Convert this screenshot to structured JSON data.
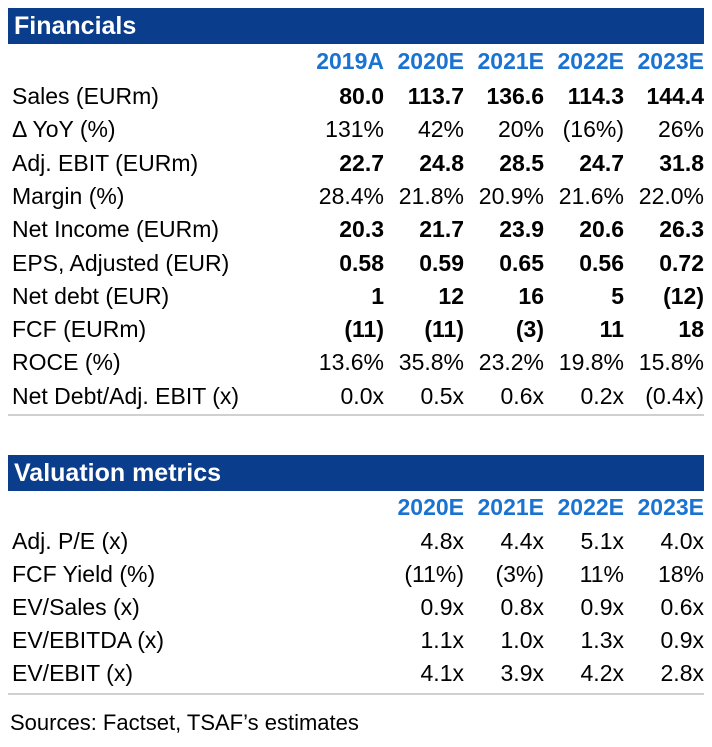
{
  "financials": {
    "title": "Financials",
    "years": [
      "2019A",
      "2020E",
      "2021E",
      "2022E",
      "2023E"
    ],
    "rows": [
      {
        "label": "Sales (EURm)",
        "bold": true,
        "values": [
          "80.0",
          "113.7",
          "136.6",
          "114.3",
          "144.4"
        ]
      },
      {
        "label": "Δ YoY (%)",
        "bold": false,
        "values": [
          "131%",
          "42%",
          "20%",
          "(16%)",
          "26%"
        ]
      },
      {
        "label": "Adj. EBIT (EURm)",
        "bold": true,
        "values": [
          "22.7",
          "24.8",
          "28.5",
          "24.7",
          "31.8"
        ]
      },
      {
        "label": "Margin (%)",
        "bold": false,
        "values": [
          "28.4%",
          "21.8%",
          "20.9%",
          "21.6%",
          "22.0%"
        ]
      },
      {
        "label": "Net Income (EURm)",
        "bold": true,
        "values": [
          "20.3",
          "21.7",
          "23.9",
          "20.6",
          "26.3"
        ]
      },
      {
        "label": "EPS, Adjusted (EUR)",
        "bold": true,
        "values": [
          "0.58",
          "0.59",
          "0.65",
          "0.56",
          "0.72"
        ]
      },
      {
        "label": "Net debt (EUR)",
        "bold": true,
        "values": [
          "1",
          "12",
          "16",
          "5",
          "(12)"
        ]
      },
      {
        "label": "FCF (EURm)",
        "bold": true,
        "values": [
          "(11)",
          "(11)",
          "(3)",
          "11",
          "18"
        ]
      },
      {
        "label": "ROCE (%)",
        "bold": false,
        "values": [
          "13.6%",
          "35.8%",
          "23.2%",
          "19.8%",
          "15.8%"
        ]
      },
      {
        "label": "Net Debt/Adj. EBIT (x)",
        "bold": false,
        "values": [
          "0.0x",
          "0.5x",
          "0.6x",
          "0.2x",
          "(0.4x)"
        ]
      }
    ]
  },
  "valuation": {
    "title": "Valuation metrics",
    "years": [
      "2020E",
      "2021E",
      "2022E",
      "2023E"
    ],
    "rows": [
      {
        "label": "Adj. P/E (x)",
        "values": [
          "4.8x",
          "4.4x",
          "5.1x",
          "4.0x"
        ]
      },
      {
        "label": "FCF Yield (%)",
        "values": [
          "(11%)",
          "(3%)",
          "11%",
          "18%"
        ]
      },
      {
        "label": "EV/Sales (x)",
        "values": [
          "0.9x",
          "0.8x",
          "0.9x",
          "0.6x"
        ]
      },
      {
        "label": "EV/EBITDA (x)",
        "values": [
          "1.1x",
          "1.0x",
          "1.3x",
          "0.9x"
        ]
      },
      {
        "label": "EV/EBIT (x)",
        "values": [
          "4.1x",
          "3.9x",
          "4.2x",
          "2.8x"
        ]
      }
    ]
  },
  "source": "Sources: Factset, TSAF’s estimates",
  "colors": {
    "header_bg": "#0a3d8c",
    "year_text": "#1a73d1"
  }
}
